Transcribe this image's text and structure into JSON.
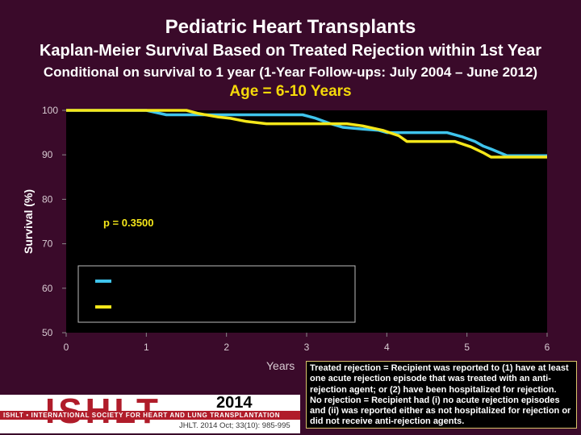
{
  "titles": {
    "main": "Pediatric Heart Transplants",
    "sub": "Kaplan-Meier Survival Based on Treated Rejection within 1st Year",
    "condition": "Conditional on survival to 1 year (1-Year Follow-ups: July 2004 – June 2012)",
    "age_group": "Age = 6-10 Years"
  },
  "chart_data": {
    "type": "line",
    "title": "Age = 6-10 Years",
    "xlabel": "Years",
    "ylabel": "Survival (%)",
    "xlim": [
      0,
      6
    ],
    "ylim": [
      50,
      100
    ],
    "xticks": [
      0,
      1,
      2,
      3,
      4,
      5,
      6
    ],
    "yticks": [
      50,
      60,
      70,
      80,
      90,
      100
    ],
    "annotation": "p = 0.3500",
    "legend_position": "lower-left",
    "series": [
      {
        "name": "",
        "color": "#3fc4ec",
        "x": [
          0,
          1.0,
          1.25,
          1.55,
          2.0,
          2.3,
          2.6,
          2.95,
          3.1,
          3.3,
          3.45,
          3.7,
          3.9,
          4.0,
          4.5,
          4.75,
          4.95,
          5.1,
          5.2,
          5.3,
          5.5,
          6.0
        ],
        "y": [
          100,
          100,
          99,
          99,
          99,
          99,
          99,
          99,
          98.3,
          97,
          96.2,
          95.8,
          95.5,
          95,
          95,
          95,
          94,
          93,
          92,
          91.3,
          89.8,
          89.8
        ]
      },
      {
        "name": "",
        "color": "#f5e71a",
        "x": [
          0,
          1.5,
          1.65,
          1.9,
          2.05,
          2.25,
          2.5,
          3.0,
          3.25,
          3.5,
          3.7,
          3.95,
          4.15,
          4.25,
          4.5,
          4.7,
          4.85,
          5.05,
          5.2,
          5.3,
          5.5,
          6.0
        ],
        "y": [
          100,
          100,
          99.3,
          98.5,
          98.2,
          97.5,
          97,
          97,
          97,
          97,
          96.5,
          95.5,
          94.3,
          93,
          93,
          93,
          93,
          91.8,
          90.5,
          89.5,
          89.5,
          89.5
        ]
      }
    ]
  },
  "note": {
    "line1": "Treated rejection = Recipient was reported to (1) have at least one acute rejection episode that was treated with an anti-rejection agent; or (2) have been hospitalized for rejection.",
    "line2": "No rejection = Recipient had (i) no acute rejection episodes and (ii) was reported either as not hospitalized for rejection or did not receive anti-rejection agents."
  },
  "logo": {
    "word": "ISHLT",
    "subtitle": "ISHLT • INTERNATIONAL SOCIETY FOR HEART AND LUNG TRANSPLANTATION",
    "year": "2014",
    "citation": "JHLT. 2014 Oct; 33(10): 985-995"
  }
}
